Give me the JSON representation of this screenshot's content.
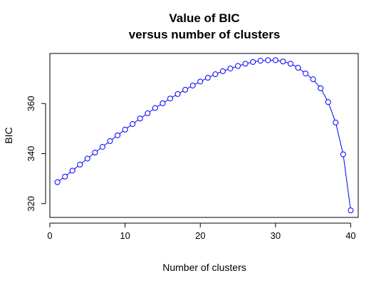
{
  "chart_data": {
    "type": "line",
    "title": "Value of BIC",
    "subtitle": "versus number of clusters",
    "xlabel": "Number of clusters",
    "ylabel": "BIC",
    "xlim": [
      0,
      41
    ],
    "ylim": [
      314.5,
      380
    ],
    "x_ticks": [
      0,
      10,
      20,
      30,
      40
    ],
    "y_ticks": [
      320,
      340,
      360
    ],
    "grid": false,
    "legend": "none",
    "series": [
      {
        "color": "#0000ff",
        "marker": "open-circle",
        "x": [
          1,
          2,
          3,
          4,
          5,
          6,
          7,
          8,
          9,
          10,
          11,
          12,
          13,
          14,
          15,
          16,
          17,
          18,
          19,
          20,
          21,
          22,
          23,
          24,
          25,
          26,
          27,
          28,
          29,
          30,
          31,
          32,
          33,
          34,
          35,
          36,
          37,
          38,
          39,
          40
        ],
        "y": [
          328.6,
          330.8,
          333.2,
          335.6,
          338.0,
          340.4,
          342.7,
          345.0,
          347.3,
          349.6,
          351.8,
          354.0,
          356.1,
          358.2,
          360.1,
          362.0,
          363.8,
          365.5,
          367.2,
          368.8,
          370.3,
          371.7,
          372.9,
          374.0,
          375.0,
          375.9,
          376.6,
          377.1,
          377.3,
          377.3,
          376.8,
          375.9,
          374.3,
          372.0,
          369.7,
          366.1,
          360.6,
          352.4,
          339.7,
          317.3
        ]
      }
    ]
  }
}
